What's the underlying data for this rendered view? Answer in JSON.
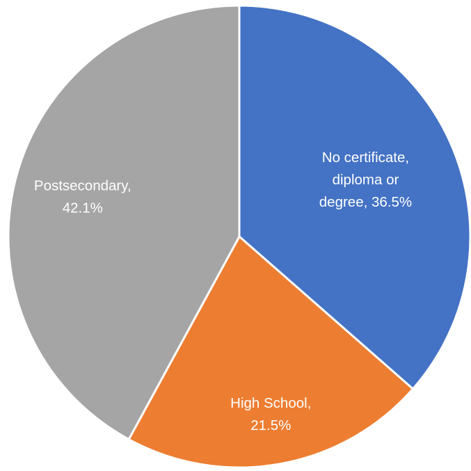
{
  "chart_data": {
    "type": "pie",
    "categories": [
      "No certificate, diploma or degree",
      "High School",
      "Postsecondary"
    ],
    "values": [
      36.5,
      21.5,
      42.1
    ],
    "unit": "%",
    "colors": [
      "#4472C4",
      "#ED7D31",
      "#A5A5A5"
    ],
    "labels": [
      {
        "lines": [
          "No certificate,",
          "diploma or",
          "degree, 36.5%"
        ]
      },
      {
        "lines": [
          "High School,",
          "21.5%"
        ]
      },
      {
        "lines": [
          "Postsecondary,",
          "42.1%"
        ]
      }
    ],
    "start_angle": "12 o'clock",
    "direction": "clockwise",
    "legend": "none",
    "label_position": "inside slices"
  }
}
